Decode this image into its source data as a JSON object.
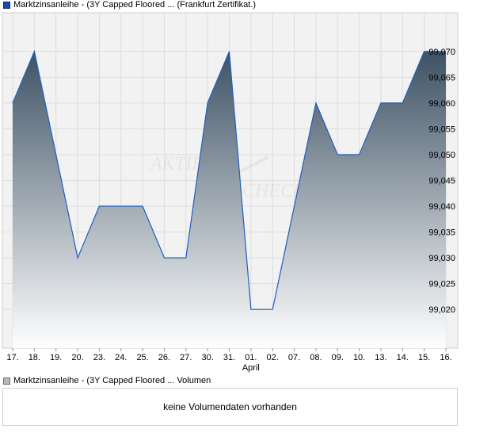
{
  "legend_price": {
    "label": "Marktzinsanleihe - (3Y Capped Floored ... (Frankfurt Zertifikat.)",
    "color": "#1a4aa6"
  },
  "legend_volume": {
    "label": "Marktzinsanleihe - (3Y Capped Floored ... Volumen",
    "color": "#b8b8b8"
  },
  "watermark": {
    "line1": "AKTIEN",
    "line2": "CHECK"
  },
  "volume_message": "keine Volumendaten vorhanden",
  "colors": {
    "line": "#1f5fbf",
    "fill_top": "#3e5264",
    "fill_bottom": "#ffffff",
    "grid": "#e2e2e2",
    "plot_bg": "#f2f2f2"
  },
  "chart_data": {
    "type": "area",
    "categories": [
      "17.",
      "18.",
      "19.",
      "20.",
      "23.",
      "24.",
      "25.",
      "26.",
      "27.",
      "30.",
      "31.",
      "01.",
      "02.",
      "07.",
      "08.",
      "09.",
      "10.",
      "13.",
      "14.",
      "15.",
      "16."
    ],
    "month_label": "April",
    "month_label_at": "01.",
    "series": [
      {
        "values": [
          99.06,
          99.07,
          99.05,
          99.03,
          99.04,
          99.04,
          99.04,
          99.03,
          99.03,
          99.06,
          99.07,
          99.02,
          99.02,
          99.04,
          99.06,
          99.05,
          99.05,
          99.06,
          99.06,
          99.07,
          99.07
        ]
      }
    ],
    "yticks": [
      "99,020",
      "99,025",
      "99,030",
      "99,035",
      "99,040",
      "99,045",
      "99,050",
      "99,055",
      "99,060",
      "99,065",
      "99,070"
    ],
    "ylim": [
      99.0125,
      99.0775
    ],
    "y_axis_position": "right",
    "grid": true,
    "title": "",
    "xlabel": "",
    "ylabel": ""
  }
}
